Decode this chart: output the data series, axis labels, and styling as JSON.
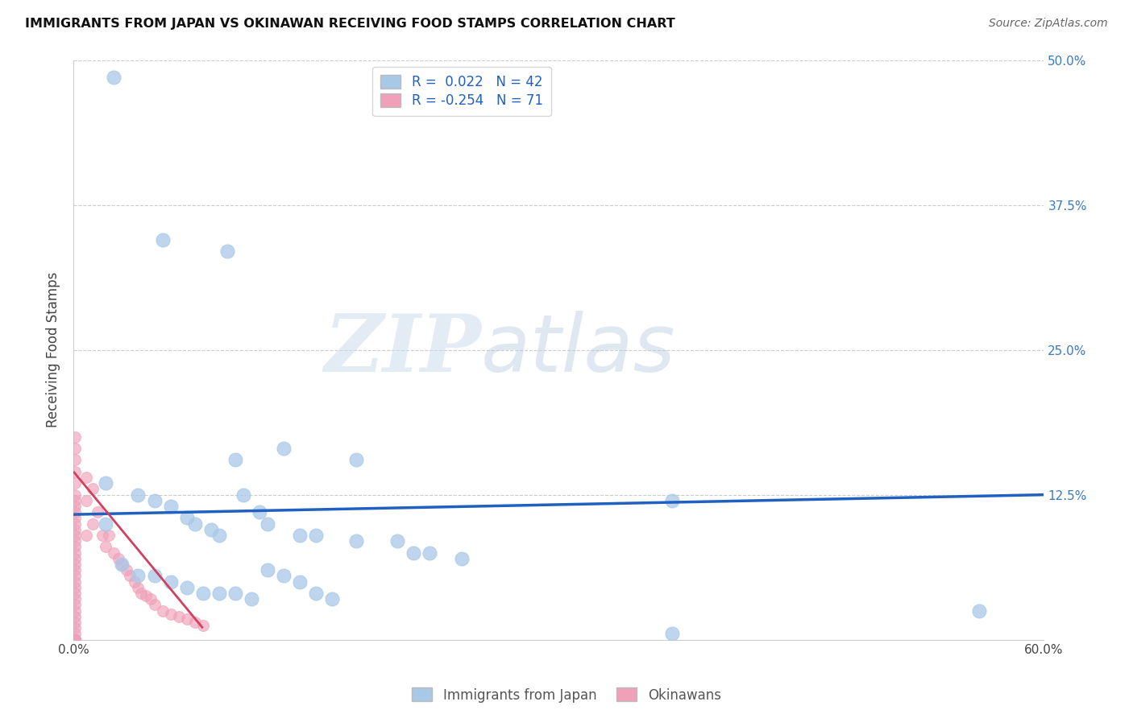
{
  "title": "IMMIGRANTS FROM JAPAN VS OKINAWAN RECEIVING FOOD STAMPS CORRELATION CHART",
  "source": "Source: ZipAtlas.com",
  "ylabel": "Receiving Food Stamps",
  "xlim": [
    0.0,
    0.6
  ],
  "ylim": [
    0.0,
    0.5
  ],
  "legend_r_japan": "0.022",
  "legend_n_japan": "42",
  "legend_r_okinawa": "-0.254",
  "legend_n_okinawa": "71",
  "blue_color": "#a8c8e8",
  "pink_color": "#f0a0b8",
  "trend_blue": "#2060c0",
  "trend_pink": "#d04060",
  "watermark_zip": "ZIP",
  "watermark_atlas": "atlas",
  "japan_scatter_x": [
    0.025,
    0.055,
    0.095,
    0.13,
    0.175,
    0.02,
    0.04,
    0.05,
    0.06,
    0.07,
    0.075,
    0.085,
    0.09,
    0.1,
    0.105,
    0.115,
    0.12,
    0.14,
    0.15,
    0.175,
    0.2,
    0.21,
    0.22,
    0.24,
    0.37,
    0.56,
    0.02,
    0.03,
    0.04,
    0.05,
    0.06,
    0.07,
    0.08,
    0.09,
    0.1,
    0.11,
    0.12,
    0.13,
    0.14,
    0.15,
    0.16,
    0.37
  ],
  "japan_scatter_y": [
    0.485,
    0.345,
    0.335,
    0.165,
    0.155,
    0.135,
    0.125,
    0.12,
    0.115,
    0.105,
    0.1,
    0.095,
    0.09,
    0.155,
    0.125,
    0.11,
    0.1,
    0.09,
    0.09,
    0.085,
    0.085,
    0.075,
    0.075,
    0.07,
    0.12,
    0.025,
    0.1,
    0.065,
    0.055,
    0.055,
    0.05,
    0.045,
    0.04,
    0.04,
    0.04,
    0.035,
    0.06,
    0.055,
    0.05,
    0.04,
    0.035,
    0.005
  ],
  "okinawa_scatter_x": [
    0.001,
    0.001,
    0.001,
    0.001,
    0.001,
    0.001,
    0.001,
    0.001,
    0.001,
    0.001,
    0.001,
    0.001,
    0.001,
    0.001,
    0.001,
    0.001,
    0.001,
    0.001,
    0.001,
    0.001,
    0.001,
    0.001,
    0.001,
    0.001,
    0.001,
    0.001,
    0.001,
    0.001,
    0.001,
    0.001,
    0.001,
    0.001,
    0.001,
    0.001,
    0.001,
    0.001,
    0.001,
    0.001,
    0.001,
    0.001,
    0.001,
    0.001,
    0.001,
    0.001,
    0.001,
    0.008,
    0.008,
    0.008,
    0.012,
    0.012,
    0.015,
    0.018,
    0.02,
    0.022,
    0.025,
    0.028,
    0.03,
    0.033,
    0.035,
    0.038,
    0.04,
    0.042,
    0.045,
    0.048,
    0.05,
    0.055,
    0.06,
    0.065,
    0.07,
    0.075,
    0.08
  ],
  "okinawa_scatter_y": [
    0.175,
    0.165,
    0.155,
    0.145,
    0.135,
    0.125,
    0.12,
    0.115,
    0.11,
    0.105,
    0.1,
    0.095,
    0.09,
    0.085,
    0.08,
    0.075,
    0.07,
    0.065,
    0.06,
    0.055,
    0.05,
    0.045,
    0.04,
    0.035,
    0.03,
    0.025,
    0.02,
    0.015,
    0.01,
    0.005,
    0.0,
    0.0,
    0.0,
    0.0,
    0.0,
    0.0,
    0.0,
    0.0,
    0.0,
    0.0,
    0.0,
    0.0,
    0.0,
    0.0,
    0.0,
    0.14,
    0.12,
    0.09,
    0.13,
    0.1,
    0.11,
    0.09,
    0.08,
    0.09,
    0.075,
    0.07,
    0.065,
    0.06,
    0.055,
    0.05,
    0.045,
    0.04,
    0.038,
    0.035,
    0.03,
    0.025,
    0.022,
    0.02,
    0.018,
    0.015,
    0.012
  ],
  "japan_trendline_x": [
    0.0,
    0.6
  ],
  "japan_trendline_y": [
    0.108,
    0.125
  ],
  "okinawa_trendline_x": [
    0.0,
    0.08
  ],
  "okinawa_trendline_y": [
    0.145,
    0.01
  ]
}
